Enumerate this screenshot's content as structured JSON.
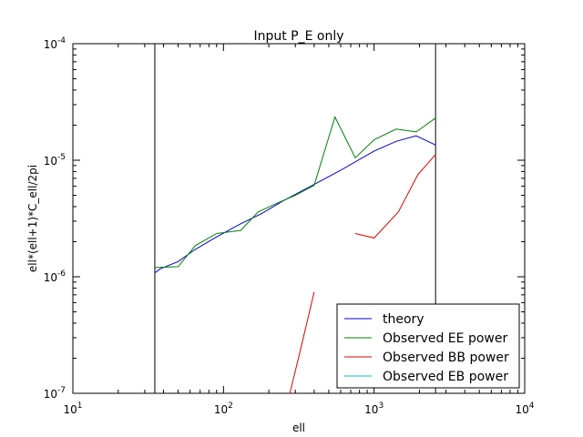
{
  "chart_data": {
    "type": "line",
    "title": "Input P_E only",
    "xlabel": "ell",
    "ylabel": "ell*(ell+1)*C_ell/2pi",
    "xscale": "log",
    "yscale": "log",
    "xlim": [
      10,
      10000
    ],
    "ylim": [
      1e-07,
      0.0001
    ],
    "grid": false,
    "legend_position": "lower-right",
    "x_ticks": [
      {
        "value": 10,
        "base": "10",
        "exp": "1"
      },
      {
        "value": 100,
        "base": "10",
        "exp": "2"
      },
      {
        "value": 1000,
        "base": "10",
        "exp": "3"
      },
      {
        "value": 10000,
        "base": "10",
        "exp": "4"
      }
    ],
    "y_ticks": [
      {
        "value": 1e-07,
        "base": "10",
        "exp": "-7"
      },
      {
        "value": 1e-06,
        "base": "10",
        "exp": "-6"
      },
      {
        "value": 1e-05,
        "base": "10",
        "exp": "-5"
      },
      {
        "value": 0.0001,
        "base": "10",
        "exp": "-4"
      }
    ],
    "vlines": [
      35,
      2560
    ],
    "series": [
      {
        "name": "theory",
        "color": "#0000cc",
        "points": [
          [
            35,
            1.08e-06
          ],
          [
            38,
            1.17e-06
          ],
          [
            50,
            1.35e-06
          ],
          [
            65,
            1.72e-06
          ],
          [
            90,
            2.2e-06
          ],
          [
            130,
            2.85e-06
          ],
          [
            180,
            3.5e-06
          ],
          [
            250,
            4.5e-06
          ],
          [
            400,
            6.2e-06
          ],
          [
            600,
            8.2e-06
          ],
          [
            1000,
            1.2e-05
          ],
          [
            1400,
            1.45e-05
          ],
          [
            1900,
            1.62e-05
          ],
          [
            2560,
            1.35e-05
          ]
        ]
      },
      {
        "name": "Observed EE power",
        "color": "#007f00",
        "points": [
          [
            35,
            1.2e-06
          ],
          [
            50,
            1.22e-06
          ],
          [
            65,
            1.85e-06
          ],
          [
            90,
            2.35e-06
          ],
          [
            130,
            2.5e-06
          ],
          [
            170,
            3.6e-06
          ],
          [
            220,
            4.2e-06
          ],
          [
            300,
            5e-06
          ],
          [
            400,
            6.1e-06
          ],
          [
            550,
            2.35e-05
          ],
          [
            750,
            1.05e-05
          ],
          [
            1000,
            1.5e-05
          ],
          [
            1400,
            1.85e-05
          ],
          [
            1900,
            1.75e-05
          ],
          [
            2560,
            2.3e-05
          ]
        ]
      },
      {
        "name": "Observed BB power",
        "color": "#dd0000",
        "segments": [
          [
            [
              270,
              9e-08
            ],
            [
              320,
              2.2e-07
            ],
            [
              400,
              7.4e-07
            ]
          ],
          [
            [
              750,
              2.35e-06
            ],
            [
              1000,
              2.15e-06
            ],
            [
              1450,
              3.6e-06
            ],
            [
              1950,
              7.5e-06
            ],
            [
              2560,
              1.12e-05
            ]
          ]
        ]
      },
      {
        "name": "Observed EB power",
        "color": "#00bfbf",
        "points": []
      }
    ]
  }
}
